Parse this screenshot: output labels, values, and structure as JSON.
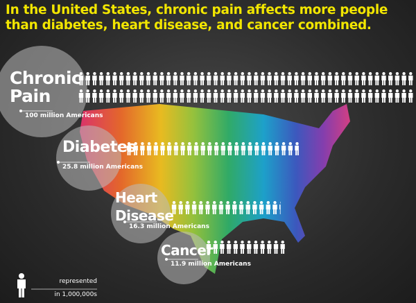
{
  "chart_data": {
    "type": "pictograph",
    "title": "In the United States, chronic pain affects more people than diabetes, heart disease, and cancer combined.",
    "categories": [
      "Chronic Pain",
      "Diabetes",
      "Heart Disease",
      "Cancer"
    ],
    "values": [
      100,
      25.8,
      16.3,
      11.9
    ],
    "value_labels": [
      "100 million Americans",
      "25.8 million Americans",
      "16.3 million Americans",
      "11.9 million Americans"
    ],
    "color": "#ffffff",
    "legend_text": [
      "represented",
      "in 1,000,000s"
    ]
  }
}
